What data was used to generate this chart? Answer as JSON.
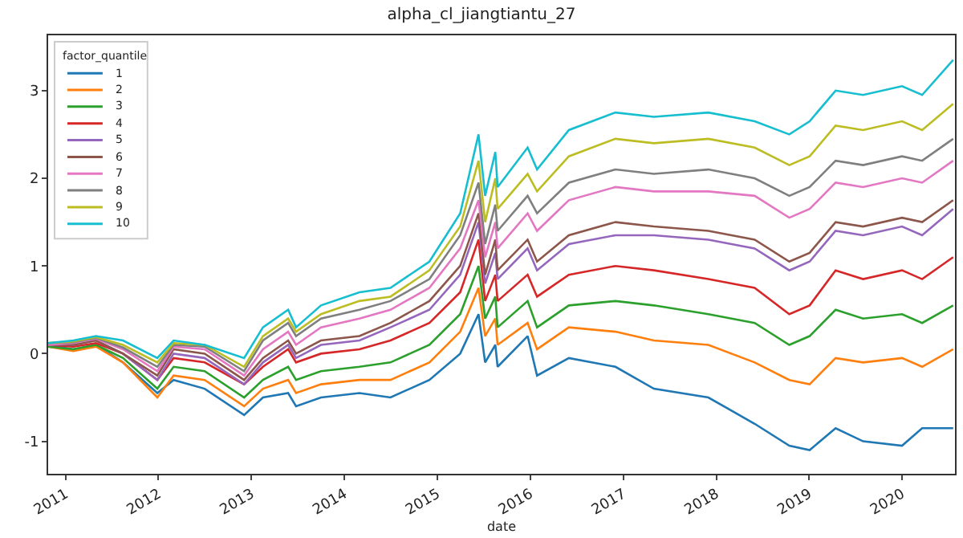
{
  "chart_data": {
    "type": "line",
    "title": "alpha_cl_jiangtiantu_27",
    "xlabel": "date",
    "legend_title": "factor_quantile",
    "legend": "top left",
    "grid": false,
    "x": [
      "2010-10-25",
      "2011-02-01",
      "2011-05-01",
      "2011-08-15",
      "2011-12-28",
      "2012-03-01",
      "2012-07-01",
      "2012-12-03",
      "2013-02-15",
      "2013-05-25",
      "2013-06-25",
      "2013-10-01",
      "2014-03-01",
      "2014-07-01",
      "2014-12-01",
      "2015-04-01",
      "2015-06-12",
      "2015-07-08",
      "2015-08-17",
      "2015-08-26",
      "2015-12-22",
      "2016-01-28",
      "2016-06-01",
      "2016-12-01",
      "2017-05-01",
      "2017-12-01",
      "2018-06-01",
      "2018-10-15",
      "2019-01-03",
      "2019-04-15",
      "2019-08-01",
      "2020-01-01",
      "2020-03-20",
      "2020-07-20"
    ],
    "xlim": [
      "2010-10-25",
      "2020-07-27"
    ],
    "xticks": [
      {
        "value": "2011-01-01",
        "label": "2011"
      },
      {
        "value": "2012-01-01",
        "label": "2012"
      },
      {
        "value": "2013-01-01",
        "label": "2013"
      },
      {
        "value": "2014-01-01",
        "label": "2014"
      },
      {
        "value": "2015-01-01",
        "label": "2015"
      },
      {
        "value": "2016-01-01",
        "label": "2016"
      },
      {
        "value": "2017-01-01",
        "label": "2017"
      },
      {
        "value": "2018-01-01",
        "label": "2018"
      },
      {
        "value": "2019-01-01",
        "label": "2019"
      },
      {
        "value": "2020-01-01",
        "label": "2020"
      }
    ],
    "ylim": [
      -1.37,
      3.63
    ],
    "yticks": [
      -1,
      0,
      1,
      2,
      3
    ],
    "series": [
      {
        "name": "1",
        "color": "#1f77b4",
        "values": [
          0.1,
          0.05,
          0.1,
          -0.1,
          -0.45,
          -0.3,
          -0.4,
          -0.7,
          -0.5,
          -0.45,
          -0.6,
          -0.5,
          -0.45,
          -0.5,
          -0.3,
          0.0,
          0.45,
          -0.1,
          0.1,
          -0.15,
          0.2,
          -0.25,
          -0.05,
          -0.15,
          -0.4,
          -0.5,
          -0.8,
          -1.05,
          -1.1,
          -0.85,
          -1.0,
          -1.05,
          -0.85,
          -0.85
        ]
      },
      {
        "name": "2",
        "color": "#ff7f0e",
        "values": [
          0.08,
          0.03,
          0.08,
          -0.1,
          -0.5,
          -0.25,
          -0.3,
          -0.6,
          -0.4,
          -0.3,
          -0.45,
          -0.35,
          -0.3,
          -0.3,
          -0.1,
          0.25,
          0.75,
          0.2,
          0.4,
          0.1,
          0.35,
          0.05,
          0.3,
          0.25,
          0.15,
          0.1,
          -0.1,
          -0.3,
          -0.35,
          -0.05,
          -0.1,
          -0.05,
          -0.15,
          0.05
        ]
      },
      {
        "name": "3",
        "color": "#2ca02c",
        "values": [
          0.08,
          0.05,
          0.1,
          -0.05,
          -0.4,
          -0.15,
          -0.2,
          -0.5,
          -0.3,
          -0.15,
          -0.3,
          -0.2,
          -0.15,
          -0.1,
          0.1,
          0.45,
          1.0,
          0.4,
          0.65,
          0.3,
          0.6,
          0.3,
          0.55,
          0.6,
          0.55,
          0.45,
          0.35,
          0.1,
          0.2,
          0.5,
          0.4,
          0.45,
          0.35,
          0.55
        ]
      },
      {
        "name": "4",
        "color": "#d62728",
        "values": [
          0.1,
          0.08,
          0.12,
          0.0,
          -0.3,
          -0.05,
          -0.1,
          -0.35,
          -0.15,
          0.05,
          -0.1,
          0.0,
          0.05,
          0.15,
          0.35,
          0.7,
          1.3,
          0.6,
          0.9,
          0.6,
          0.9,
          0.65,
          0.9,
          1.0,
          0.95,
          0.85,
          0.75,
          0.45,
          0.55,
          0.95,
          0.85,
          0.95,
          0.85,
          1.1
        ]
      },
      {
        "name": "5",
        "color": "#9467bd",
        "values": [
          0.1,
          0.1,
          0.15,
          0.0,
          -0.3,
          0.0,
          -0.05,
          -0.35,
          -0.1,
          0.1,
          -0.05,
          0.1,
          0.15,
          0.3,
          0.5,
          0.9,
          1.5,
          0.8,
          1.15,
          0.85,
          1.2,
          0.95,
          1.25,
          1.35,
          1.35,
          1.3,
          1.2,
          0.95,
          1.05,
          1.4,
          1.35,
          1.45,
          1.35,
          1.65
        ]
      },
      {
        "name": "6",
        "color": "#8c564b",
        "values": [
          0.1,
          0.1,
          0.15,
          0.0,
          -0.25,
          0.05,
          0.0,
          -0.3,
          -0.05,
          0.15,
          0.0,
          0.15,
          0.2,
          0.35,
          0.6,
          1.0,
          1.6,
          0.9,
          1.3,
          0.95,
          1.3,
          1.05,
          1.35,
          1.5,
          1.45,
          1.4,
          1.3,
          1.05,
          1.15,
          1.5,
          1.45,
          1.55,
          1.5,
          1.75
        ]
      },
      {
        "name": "7",
        "color": "#e377c2",
        "values": [
          0.1,
          0.12,
          0.17,
          0.05,
          -0.2,
          0.08,
          0.05,
          -0.25,
          0.05,
          0.25,
          0.1,
          0.3,
          0.4,
          0.5,
          0.75,
          1.2,
          1.75,
          1.1,
          1.5,
          1.2,
          1.6,
          1.4,
          1.75,
          1.9,
          1.85,
          1.85,
          1.8,
          1.55,
          1.65,
          1.95,
          1.9,
          2.0,
          1.95,
          2.2
        ]
      },
      {
        "name": "8",
        "color": "#7f7f7f",
        "values": [
          0.12,
          0.13,
          0.18,
          0.07,
          -0.15,
          0.1,
          0.08,
          -0.2,
          0.15,
          0.35,
          0.2,
          0.4,
          0.5,
          0.6,
          0.85,
          1.35,
          1.95,
          1.25,
          1.7,
          1.4,
          1.8,
          1.6,
          1.95,
          2.1,
          2.05,
          2.1,
          2.0,
          1.8,
          1.9,
          2.2,
          2.15,
          2.25,
          2.2,
          2.45
        ]
      },
      {
        "name": "9",
        "color": "#bcbd22",
        "values": [
          0.12,
          0.14,
          0.19,
          0.1,
          -0.1,
          0.12,
          0.1,
          -0.15,
          0.2,
          0.4,
          0.25,
          0.45,
          0.6,
          0.65,
          0.95,
          1.45,
          2.2,
          1.5,
          2.0,
          1.65,
          2.05,
          1.85,
          2.25,
          2.45,
          2.4,
          2.45,
          2.35,
          2.15,
          2.25,
          2.6,
          2.55,
          2.65,
          2.55,
          2.85
        ]
      },
      {
        "name": "10",
        "color": "#17becf",
        "values": [
          0.12,
          0.15,
          0.2,
          0.15,
          -0.05,
          0.15,
          0.1,
          -0.05,
          0.3,
          0.5,
          0.3,
          0.55,
          0.7,
          0.75,
          1.05,
          1.6,
          2.5,
          1.8,
          2.3,
          1.9,
          2.35,
          2.1,
          2.55,
          2.75,
          2.7,
          2.75,
          2.65,
          2.5,
          2.65,
          3.0,
          2.95,
          3.05,
          2.95,
          3.35
        ]
      }
    ]
  }
}
